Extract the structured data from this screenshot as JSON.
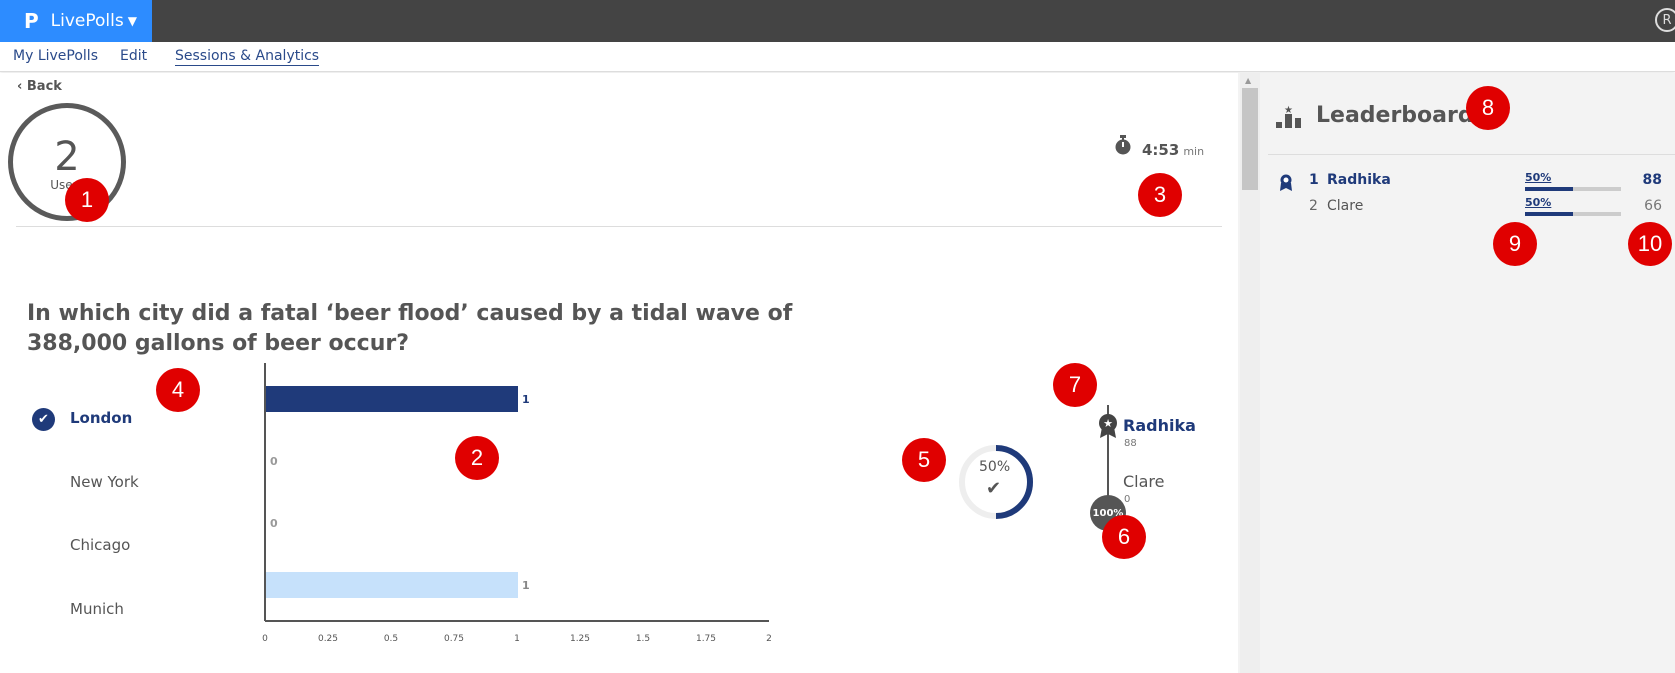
{
  "app": {
    "brand": "LivePolls",
    "logo_glyph": "P",
    "avatar_initial": "R"
  },
  "nav": {
    "my_livepolls": "My LivePolls",
    "edit": "Edit",
    "sessions": "Sessions & Analytics"
  },
  "session": {
    "back_label": "Back",
    "users_count": "2",
    "users_label": "Users",
    "timer_value": "4:53",
    "timer_unit": "min"
  },
  "question": {
    "text": "In which city did a fatal ‘beer flood’ caused by a tidal wave of 388,000 gallons of beer occur?",
    "answers": [
      {
        "label": "London",
        "count": "1",
        "correct": true
      },
      {
        "label": "New York",
        "count": "0",
        "correct": false
      },
      {
        "label": "Chicago",
        "count": "0",
        "correct": false
      },
      {
        "label": "Munich",
        "count": "1",
        "correct": false
      }
    ]
  },
  "chart_data": {
    "type": "bar",
    "orientation": "horizontal",
    "categories": [
      "London",
      "New York",
      "Chicago",
      "Munich"
    ],
    "values": [
      1,
      0,
      0,
      1
    ],
    "xlim": [
      0,
      2
    ],
    "ticks": [
      "0",
      "0.25",
      "0.5",
      "0.75",
      "1",
      "1.25",
      "1.5",
      "1.75",
      "2"
    ],
    "colors": [
      "#1f3a7a",
      "#1f3a7a",
      "#1f3a7a",
      "#c6e1fb"
    ]
  },
  "results": {
    "correct_pct": "50%",
    "correct_fraction": 0.5,
    "completion_badge": "100%",
    "rank_list": [
      {
        "name": "Radhika",
        "score": "88"
      },
      {
        "name": "Clare",
        "score": "0"
      }
    ]
  },
  "leaderboard": {
    "title": "Leaderboard",
    "rows": [
      {
        "rank": "1",
        "name": "Radhika",
        "pct": "50%",
        "fraction": 0.5,
        "points": "88"
      },
      {
        "rank": "2",
        "name": "Clare",
        "pct": "50%",
        "fraction": 0.5,
        "points": "66"
      }
    ]
  },
  "callouts": [
    "1",
    "2",
    "3",
    "4",
    "5",
    "6",
    "7",
    "8",
    "9",
    "10"
  ],
  "colors": {
    "brand": "#2d8cff",
    "accent": "#1f3a7a",
    "callout": "#e00000"
  }
}
